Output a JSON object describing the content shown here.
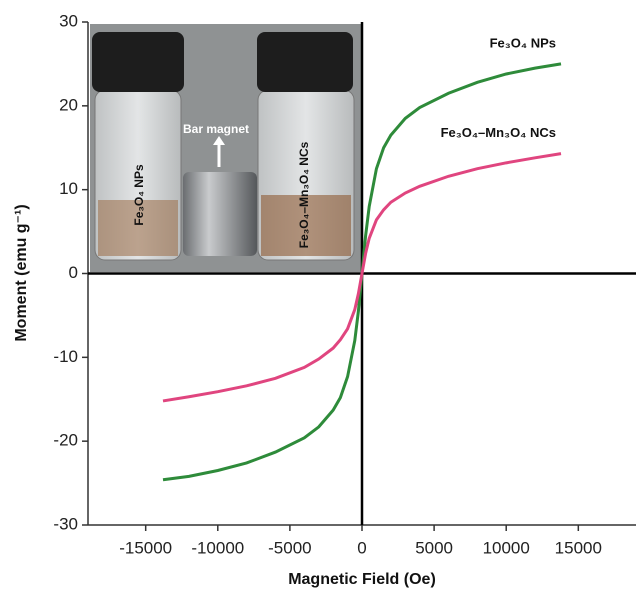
{
  "chart_data": {
    "type": "line",
    "x_label": "Magnetic Field (Oe)",
    "y_label": "Moment (emu g⁻¹)",
    "x": [
      -13800,
      -12000,
      -10000,
      -8000,
      -6000,
      -4000,
      -3000,
      -2000,
      -1500,
      -1000,
      -500,
      -250,
      0,
      250,
      500,
      1000,
      1500,
      2000,
      3000,
      4000,
      6000,
      8000,
      10000,
      12000,
      13800
    ],
    "series": [
      {
        "name": "Fe₃O₄ NPs",
        "color": "#2e8b3a",
        "values": [
          -24.6,
          -24.2,
          -23.5,
          -22.6,
          -21.3,
          -19.6,
          -18.3,
          -16.3,
          -14.8,
          -12.3,
          -8,
          -4.5,
          0,
          4.5,
          8,
          12.5,
          15,
          16.5,
          18.5,
          19.8,
          21.5,
          22.8,
          23.8,
          24.5,
          25
        ]
      },
      {
        "name": "Fe₃O₄–Mn₃O₄ NCs",
        "color": "#e0457f",
        "values": [
          -15.2,
          -14.7,
          -14.1,
          -13.4,
          -12.5,
          -11.2,
          -10.2,
          -8.9,
          -7.9,
          -6.6,
          -4.3,
          -2.4,
          0,
          2.4,
          4.2,
          6.4,
          7.6,
          8.5,
          9.6,
          10.4,
          11.6,
          12.5,
          13.2,
          13.8,
          14.3
        ]
      }
    ],
    "xlim": [
      -19000,
      19000
    ],
    "ylim": [
      -30,
      30
    ],
    "xticks": [
      -15000,
      -10000,
      -5000,
      0,
      5000,
      10000,
      15000
    ],
    "yticks": [
      -30,
      -20,
      -10,
      0,
      10,
      20,
      30
    ],
    "inset_labels": {
      "bar_magnet": "Bar magnet",
      "left_vial": "Fe₃O₄ NPs",
      "right_vial": "Fe₃O₄–Mn₃O₄ NCs"
    }
  }
}
